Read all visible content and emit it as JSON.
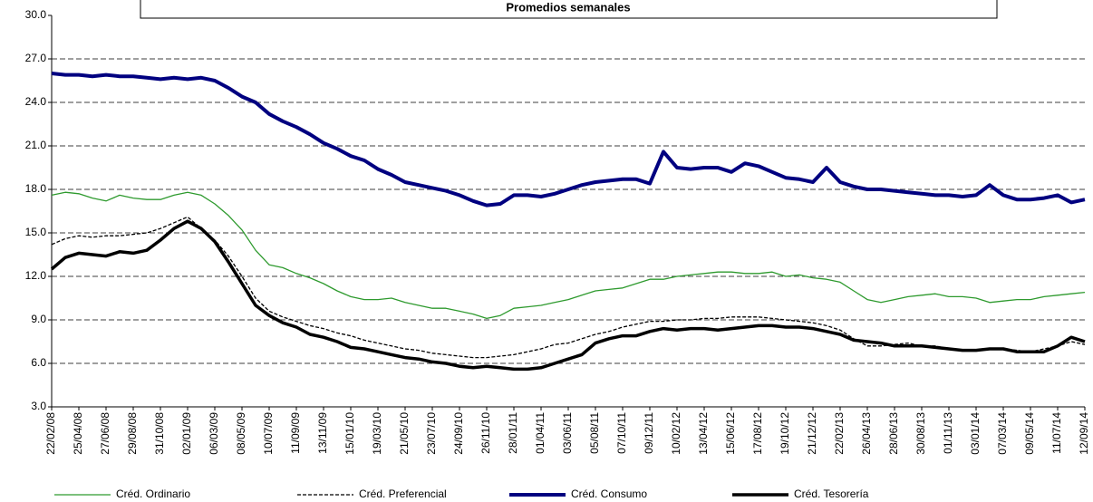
{
  "chart_data": {
    "type": "line",
    "title": "Promedios semanales",
    "categories": [
      "22/02/08",
      null,
      "25/04/08",
      null,
      "27/06/08",
      null,
      "29/08/08",
      null,
      "31/10/08",
      null,
      "02/01/09",
      null,
      "06/03/09",
      null,
      "08/05/09",
      null,
      "10/07/09",
      null,
      "11/09/09",
      null,
      "13/11/09",
      null,
      "15/01/10",
      null,
      "19/03/10",
      null,
      "21/05/10",
      null,
      "23/07/10",
      null,
      "24/09/10",
      null,
      "26/11/10",
      null,
      "28/01/11",
      null,
      "01/04/11",
      null,
      "03/06/11",
      null,
      "05/08/11",
      null,
      "07/10/11",
      null,
      "09/12/11",
      null,
      "10/02/12",
      null,
      "13/04/12",
      null,
      "15/06/12",
      null,
      "17/08/12",
      null,
      "19/10/12",
      null,
      "21/12/12",
      null,
      "22/02/13",
      null,
      "26/04/13",
      null,
      "28/06/13",
      null,
      "30/08/13",
      null,
      "01/11/13",
      null,
      "03/01/14",
      null,
      "07/03/14",
      null,
      "09/05/14",
      null,
      "11/07/14",
      null,
      "12/09/14"
    ],
    "series": [
      {
        "name": "Créd. Ordinario",
        "color": "#2e9a2e",
        "values": [
          17.6,
          17.8,
          17.7,
          17.4,
          17.2,
          17.6,
          17.4,
          17.3,
          17.3,
          17.6,
          17.8,
          17.6,
          17.0,
          16.2,
          15.2,
          13.8,
          12.8,
          12.6,
          12.2,
          11.9,
          11.5,
          11.0,
          10.6,
          10.4,
          10.4,
          10.5,
          10.2,
          10.0,
          9.8,
          9.8,
          9.6,
          9.4,
          9.1,
          9.3,
          9.8,
          9.9,
          10.0,
          10.2,
          10.4,
          10.7,
          11.0,
          11.1,
          11.2,
          11.5,
          11.8,
          11.8,
          12.0,
          12.1,
          12.2,
          12.3,
          12.3,
          12.2,
          12.2,
          12.3,
          12.0,
          12.1,
          11.9,
          11.8,
          11.6,
          11.0,
          10.4,
          10.2,
          10.4,
          10.6,
          10.7,
          10.8,
          10.6,
          10.6,
          10.5,
          10.2,
          10.3,
          10.4,
          10.4,
          10.6,
          10.7,
          10.8,
          10.9
        ]
      },
      {
        "name": "Créd. Preferencial",
        "color": "#000000",
        "line_style": "dashed",
        "values": [
          14.2,
          14.6,
          14.8,
          14.7,
          14.8,
          14.8,
          14.9,
          15.0,
          15.3,
          15.7,
          16.1,
          15.3,
          14.5,
          13.4,
          12.0,
          10.5,
          9.6,
          9.2,
          8.9,
          8.6,
          8.4,
          8.1,
          7.9,
          7.6,
          7.4,
          7.2,
          7.0,
          6.9,
          6.7,
          6.6,
          6.5,
          6.4,
          6.4,
          6.5,
          6.6,
          6.8,
          7.0,
          7.3,
          7.4,
          7.7,
          8.0,
          8.2,
          8.5,
          8.7,
          8.9,
          8.9,
          9.0,
          9.0,
          9.1,
          9.1,
          9.2,
          9.2,
          9.2,
          9.1,
          9.0,
          8.9,
          8.8,
          8.6,
          8.3,
          7.7,
          7.2,
          7.2,
          7.3,
          7.4,
          7.2,
          7.2,
          7.0,
          6.9,
          6.9,
          7.0,
          7.0,
          6.9,
          6.8,
          7.0,
          7.2,
          7.5,
          7.3
        ]
      },
      {
        "name": "Créd. Consumo",
        "color": "#000080",
        "values": [
          26.0,
          25.9,
          25.9,
          25.8,
          25.9,
          25.8,
          25.8,
          25.7,
          25.6,
          25.7,
          25.6,
          25.7,
          25.5,
          25.0,
          24.4,
          24.0,
          23.2,
          22.7,
          22.3,
          21.8,
          21.2,
          20.8,
          20.3,
          20.0,
          19.4,
          19.0,
          18.5,
          18.3,
          18.1,
          17.9,
          17.6,
          17.2,
          16.9,
          17.0,
          17.6,
          17.6,
          17.5,
          17.7,
          18.0,
          18.3,
          18.5,
          18.6,
          18.7,
          18.7,
          18.4,
          20.6,
          19.5,
          19.4,
          19.5,
          19.5,
          19.2,
          19.8,
          19.6,
          19.2,
          18.8,
          18.7,
          18.5,
          19.5,
          18.5,
          18.2,
          18.0,
          18.0,
          17.9,
          17.8,
          17.7,
          17.6,
          17.6,
          17.5,
          17.6,
          18.3,
          17.6,
          17.3,
          17.3,
          17.4,
          17.6,
          17.1,
          17.3
        ]
      },
      {
        "name": "Créd. Tesorería",
        "color": "#000000",
        "values": [
          12.5,
          13.3,
          13.6,
          13.5,
          13.4,
          13.7,
          13.6,
          13.8,
          14.5,
          15.3,
          15.8,
          15.3,
          14.4,
          13.0,
          11.5,
          10.0,
          9.3,
          8.8,
          8.5,
          8.0,
          7.8,
          7.5,
          7.1,
          7.0,
          6.8,
          6.6,
          6.4,
          6.3,
          6.1,
          6.0,
          5.8,
          5.7,
          5.8,
          5.7,
          5.6,
          5.6,
          5.7,
          6.0,
          6.3,
          6.6,
          7.4,
          7.7,
          7.9,
          7.9,
          8.2,
          8.4,
          8.3,
          8.4,
          8.4,
          8.3,
          8.4,
          8.5,
          8.6,
          8.6,
          8.5,
          8.5,
          8.4,
          8.2,
          8.0,
          7.6,
          7.5,
          7.4,
          7.2,
          7.2,
          7.2,
          7.1,
          7.0,
          6.9,
          6.9,
          7.0,
          7.0,
          6.8,
          6.8,
          6.8,
          7.2,
          7.8,
          7.5
        ]
      }
    ],
    "ylim": [
      3,
      30
    ],
    "yticks": [
      {
        "value": 3,
        "label": "3.0"
      },
      {
        "value": 6,
        "label": "6.0"
      },
      {
        "value": 9,
        "label": "9.0"
      },
      {
        "value": 12,
        "label": "12.0"
      },
      {
        "value": 15,
        "label": "15.0"
      },
      {
        "value": 18,
        "label": "18.0"
      },
      {
        "value": 21,
        "label": "21.0"
      },
      {
        "value": 24,
        "label": "24.0"
      },
      {
        "value": 27,
        "label": "27.0"
      },
      {
        "value": 30,
        "label": "30.0"
      }
    ],
    "grid": true,
    "legend": "bottom"
  }
}
